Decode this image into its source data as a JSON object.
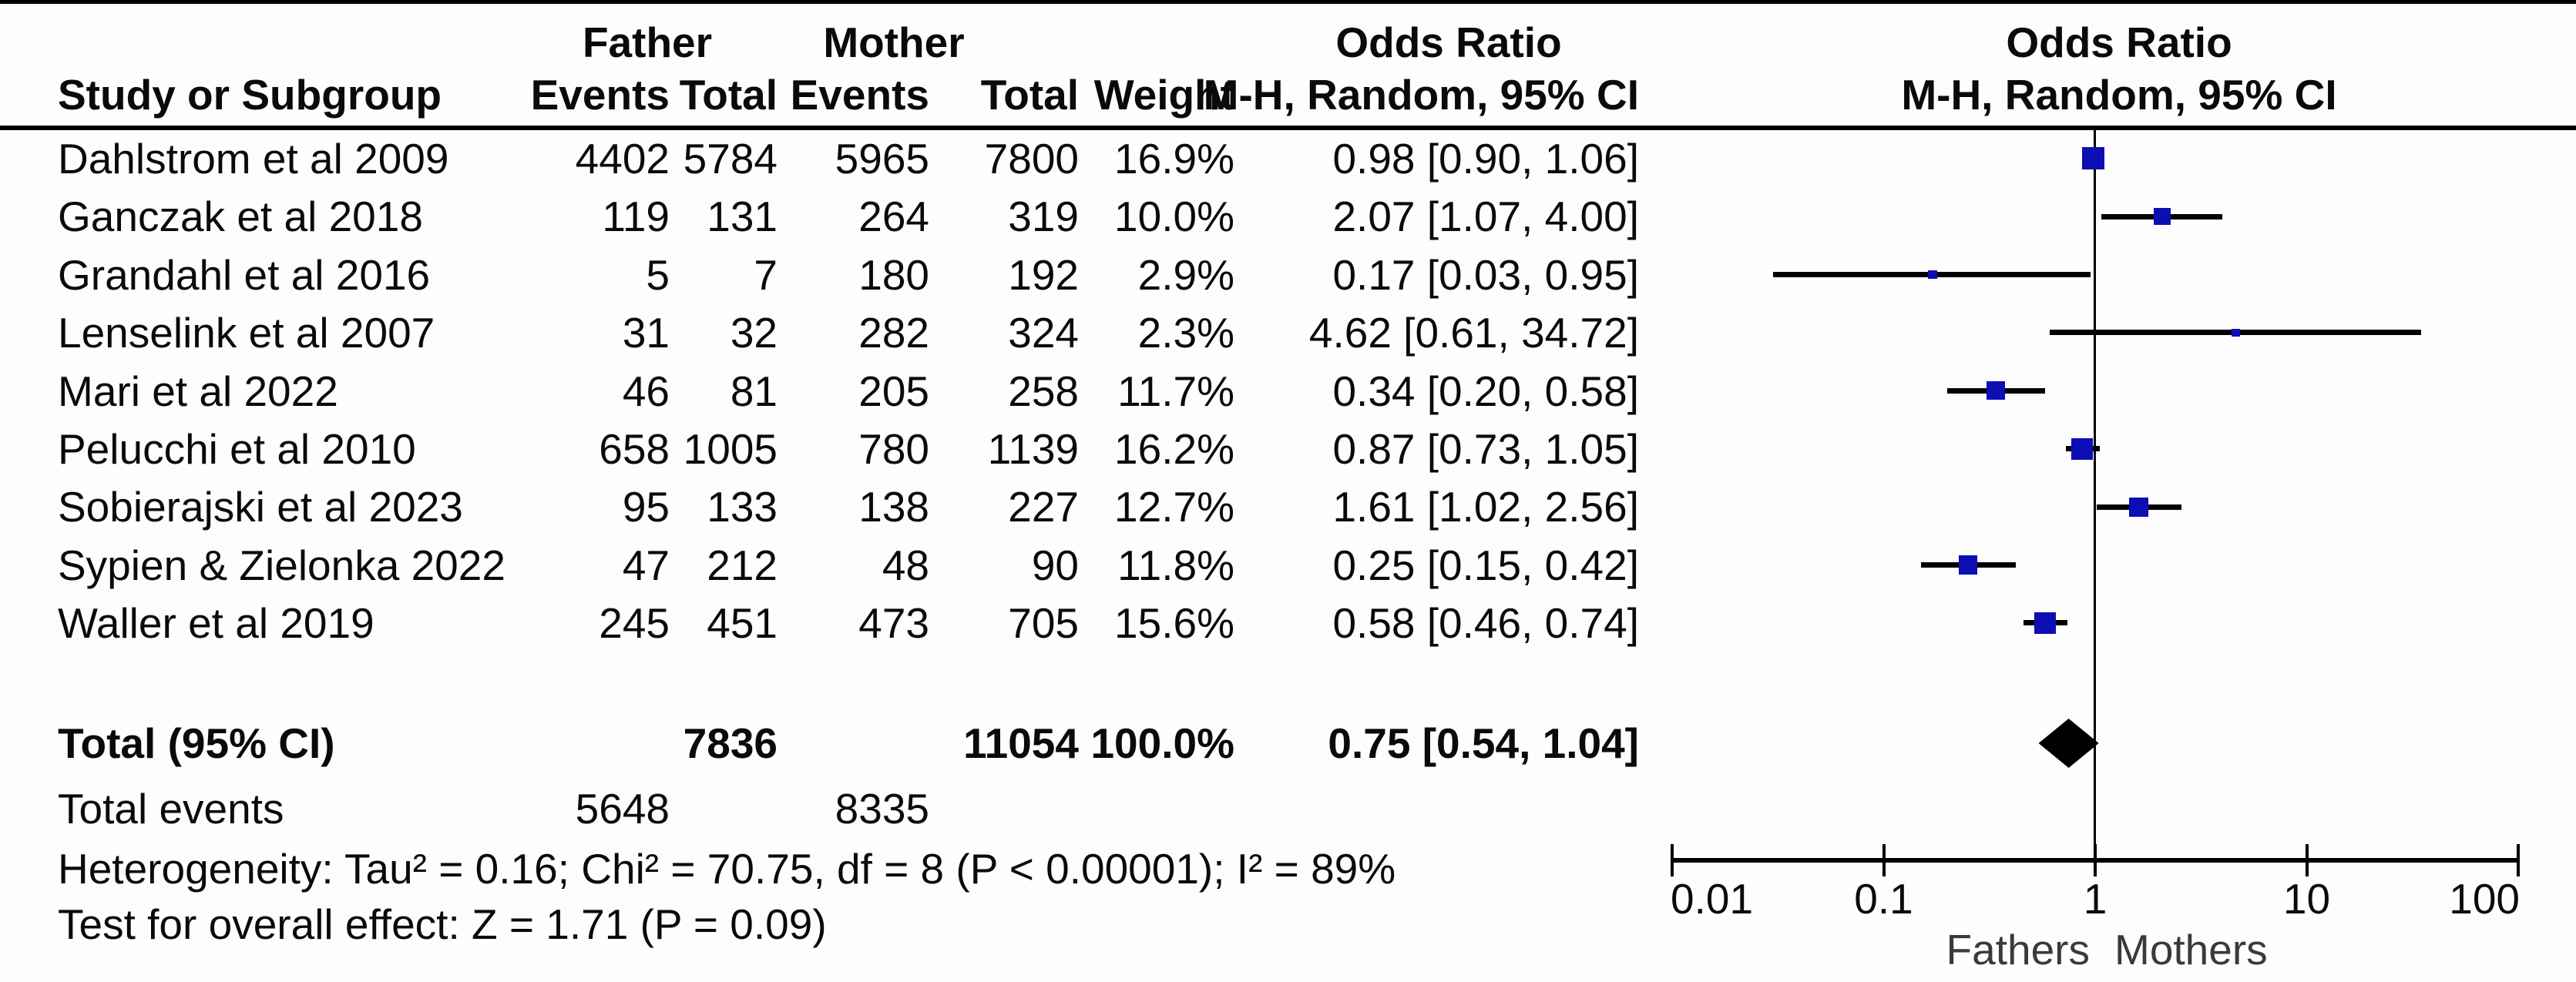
{
  "header": {
    "group_father": "Father",
    "group_mother": "Mother",
    "odds_ratio_stat": "Odds Ratio",
    "odds_ratio_plot": "Odds Ratio",
    "study": "Study or Subgroup",
    "father_events": "Events",
    "father_total": "Total",
    "mother_events": "Events",
    "mother_total": "Total",
    "weight": "Weight",
    "mh_stat": "M-H, Random, 95% CI",
    "mh_plot": "M-H, Random, 95% CI"
  },
  "rows": [
    {
      "study": "Dahlstrom et al 2009",
      "father_events": "4402",
      "father_total": "5784",
      "mother_events": "5965",
      "mother_total": "7800",
      "weight": "16.9%",
      "or_ci": "0.98 [0.90, 1.06]"
    },
    {
      "study": "Ganczak et al 2018",
      "father_events": "119",
      "father_total": "131",
      "mother_events": "264",
      "mother_total": "319",
      "weight": "10.0%",
      "or_ci": "2.07 [1.07, 4.00]"
    },
    {
      "study": "Grandahl et al 2016",
      "father_events": "5",
      "father_total": "7",
      "mother_events": "180",
      "mother_total": "192",
      "weight": "2.9%",
      "or_ci": "0.17 [0.03, 0.95]"
    },
    {
      "study": "Lenselink et al 2007",
      "father_events": "31",
      "father_total": "32",
      "mother_events": "282",
      "mother_total": "324",
      "weight": "2.3%",
      "or_ci": "4.62 [0.61, 34.72]"
    },
    {
      "study": "Mari et al 2022",
      "father_events": "46",
      "father_total": "81",
      "mother_events": "205",
      "mother_total": "258",
      "weight": "11.7%",
      "or_ci": "0.34 [0.20, 0.58]"
    },
    {
      "study": "Pelucchi et al 2010",
      "father_events": "658",
      "father_total": "1005",
      "mother_events": "780",
      "mother_total": "1139",
      "weight": "16.2%",
      "or_ci": "0.87 [0.73, 1.05]"
    },
    {
      "study": "Sobierajski et al 2023",
      "father_events": "95",
      "father_total": "133",
      "mother_events": "138",
      "mother_total": "227",
      "weight": "12.7%",
      "or_ci": "1.61 [1.02, 2.56]"
    },
    {
      "study": "Sypien & Zielonka 2022",
      "father_events": "47",
      "father_total": "212",
      "mother_events": "48",
      "mother_total": "90",
      "weight": "11.8%",
      "or_ci": "0.25 [0.15, 0.42]"
    },
    {
      "study": "Waller et al 2019",
      "father_events": "245",
      "father_total": "451",
      "mother_events": "473",
      "mother_total": "705",
      "weight": "15.6%",
      "or_ci": "0.58 [0.46, 0.74]"
    }
  ],
  "totals": {
    "label": "Total (95% CI)",
    "father_total": "7836",
    "mother_total": "11054",
    "weight": "100.0%",
    "or_ci": "0.75 [0.54, 1.04]"
  },
  "total_events": {
    "label": "Total events",
    "father_events": "5648",
    "mother_events": "8335"
  },
  "footnotes": {
    "heterogeneity": "Heterogeneity: Tau² = 0.16; Chi² = 70.75, df = 8 (P < 0.00001); I² = 89%",
    "overall_effect": "Test for overall effect: Z = 1.71 (P = 0.09)"
  },
  "axis_labels": {
    "left": "Fathers",
    "right": "Mothers"
  },
  "chart_data": {
    "type": "forest",
    "x_scale": "log10",
    "x_ticks": [
      0.01,
      0.1,
      1,
      10,
      100
    ],
    "x_tick_labels": [
      "0.01",
      "0.1",
      "1",
      "10",
      "100"
    ],
    "no_effect_line": 1,
    "effect_measure": "Odds Ratio, M-H, Random, 95% CI",
    "studies": [
      {
        "name": "Dahlstrom et al 2009",
        "or": 0.98,
        "ci_low": 0.9,
        "ci_high": 1.06,
        "weight_pct": 16.9
      },
      {
        "name": "Ganczak et al 2018",
        "or": 2.07,
        "ci_low": 1.07,
        "ci_high": 4.0,
        "weight_pct": 10.0
      },
      {
        "name": "Grandahl et al 2016",
        "or": 0.17,
        "ci_low": 0.03,
        "ci_high": 0.95,
        "weight_pct": 2.9
      },
      {
        "name": "Lenselink et al 2007",
        "or": 4.62,
        "ci_low": 0.61,
        "ci_high": 34.72,
        "weight_pct": 2.3
      },
      {
        "name": "Mari et al 2022",
        "or": 0.34,
        "ci_low": 0.2,
        "ci_high": 0.58,
        "weight_pct": 11.7
      },
      {
        "name": "Pelucchi et al 2010",
        "or": 0.87,
        "ci_low": 0.73,
        "ci_high": 1.05,
        "weight_pct": 16.2
      },
      {
        "name": "Sobierajski et al 2023",
        "or": 1.61,
        "ci_low": 1.02,
        "ci_high": 2.56,
        "weight_pct": 12.7
      },
      {
        "name": "Sypien & Zielonka 2022",
        "or": 0.25,
        "ci_low": 0.15,
        "ci_high": 0.42,
        "weight_pct": 11.8
      },
      {
        "name": "Waller et al 2019",
        "or": 0.58,
        "ci_low": 0.46,
        "ci_high": 0.74,
        "weight_pct": 15.6
      }
    ],
    "total": {
      "or": 0.75,
      "ci_low": 0.54,
      "ci_high": 1.04,
      "weight_pct": 100.0
    },
    "colors": {
      "marker": "#0d0db4",
      "diamond": "#000000",
      "line": "#000000"
    }
  }
}
